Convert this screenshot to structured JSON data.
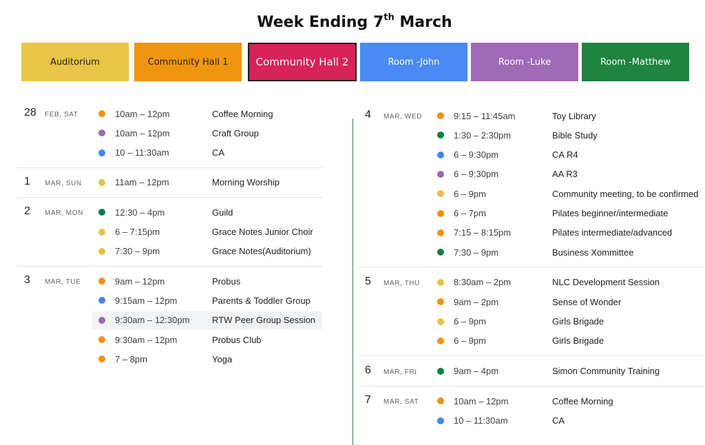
{
  "header": {
    "title_pre": "Week Ending 7",
    "title_sup": "th",
    "title_post": " March"
  },
  "legend": [
    {
      "label": "Auditorium",
      "color": "#e8c547"
    },
    {
      "label": "Community  Hall 1",
      "color": "#f0960e"
    },
    {
      "label": "Community Hall 2",
      "color": "#d8225a"
    },
    {
      "label": "Room -John",
      "color": "#4a8af4"
    },
    {
      "label": "Room -Luke",
      "color": "#9f6ab8"
    },
    {
      "label": "Room -Matthew",
      "color": "#1e8440"
    }
  ],
  "colors": {
    "yellow": "#e4c441",
    "orange": "#f29111",
    "green": "#0b8043",
    "blue": "#4285f4",
    "purple": "#9e69af"
  },
  "left_days": [
    {
      "num": "28",
      "label": "FEB, SAT",
      "events": [
        {
          "time": "10am – 12pm",
          "name": "Coffee Morning",
          "color": "orange"
        },
        {
          "time": "10am – 12pm",
          "name": "Craft Group",
          "color": "purple"
        },
        {
          "time": "10 – 11:30am",
          "name": "CA",
          "color": "blue"
        }
      ]
    },
    {
      "num": "1",
      "label": "MAR, SUN",
      "events": [
        {
          "time": "11am – 12pm",
          "name": "Morning Worship",
          "color": "yellow"
        }
      ]
    },
    {
      "num": "2",
      "label": "MAR, MON",
      "events": [
        {
          "time": "12:30 – 4pm",
          "name": "Guild",
          "color": "green"
        },
        {
          "time": "6 – 7:15pm",
          "name": "Grace Notes Junior Choir",
          "color": "yellow"
        },
        {
          "time": "7:30 – 9pm",
          "name": "Grace Notes(Auditorium)",
          "color": "yellow"
        }
      ]
    },
    {
      "num": "3",
      "label": "MAR, TUE",
      "events": [
        {
          "time": "9am – 12pm",
          "name": "Probus",
          "color": "orange"
        },
        {
          "time": "9:15am – 12pm",
          "name": "Parents & Toddler Group",
          "color": "blue"
        },
        {
          "time": "9:30am – 12:30pm",
          "name": "RTW Peer Group Session",
          "color": "purple"
        },
        {
          "time": "9:30am – 12pm",
          "name": "Probus Club",
          "color": "orange"
        },
        {
          "time": "7 – 8pm",
          "name": "Yoga",
          "color": "orange"
        }
      ]
    }
  ],
  "right_days": [
    {
      "num": "4",
      "label": "MAR, WED",
      "events": [
        {
          "time": "9:15 – 11:45am",
          "name": "Toy Library",
          "color": "orange"
        },
        {
          "time": "1:30 – 2:30pm",
          "name": "Bible Study",
          "color": "green"
        },
        {
          "time": "6 – 9:30pm",
          "name": "CA R4",
          "color": "blue"
        },
        {
          "time": "6 – 9:30pm",
          "name": "AA R3",
          "color": "purple"
        },
        {
          "time": "6 – 9pm",
          "name": "Community meeting, to be confirmed",
          "color": "yellow"
        },
        {
          "time": "6 – 7pm",
          "name": "Pilates beginner/intermediate",
          "color": "orange"
        },
        {
          "time": "7:15 – 8:15pm",
          "name": "Pilates intermediate/advanced",
          "color": "orange"
        },
        {
          "time": "7:30 – 9pm",
          "name": "Business Xommittee",
          "color": "green"
        }
      ]
    },
    {
      "num": "5",
      "label": "MAR, THU",
      "events": [
        {
          "time": "8:30am – 2pm",
          "name": "NLC Development Session",
          "color": "yellow"
        },
        {
          "time": "9am – 2pm",
          "name": "Sense of Wonder",
          "color": "orange"
        },
        {
          "time": "6 – 9pm",
          "name": "Girls Brigade",
          "color": "yellow"
        },
        {
          "time": "6 – 9pm",
          "name": "Girls Brigade",
          "color": "orange"
        }
      ]
    },
    {
      "num": "6",
      "label": "MAR, FRI",
      "events": [
        {
          "time": "9am – 4pm",
          "name": "Simon Community Training",
          "color": "green"
        }
      ]
    },
    {
      "num": "7",
      "label": "MAR, SAT",
      "events": [
        {
          "time": "10am – 12pm",
          "name": "Coffee Morning",
          "color": "orange"
        },
        {
          "time": "10 – 11:30am",
          "name": "CA",
          "color": "blue"
        }
      ]
    }
  ]
}
